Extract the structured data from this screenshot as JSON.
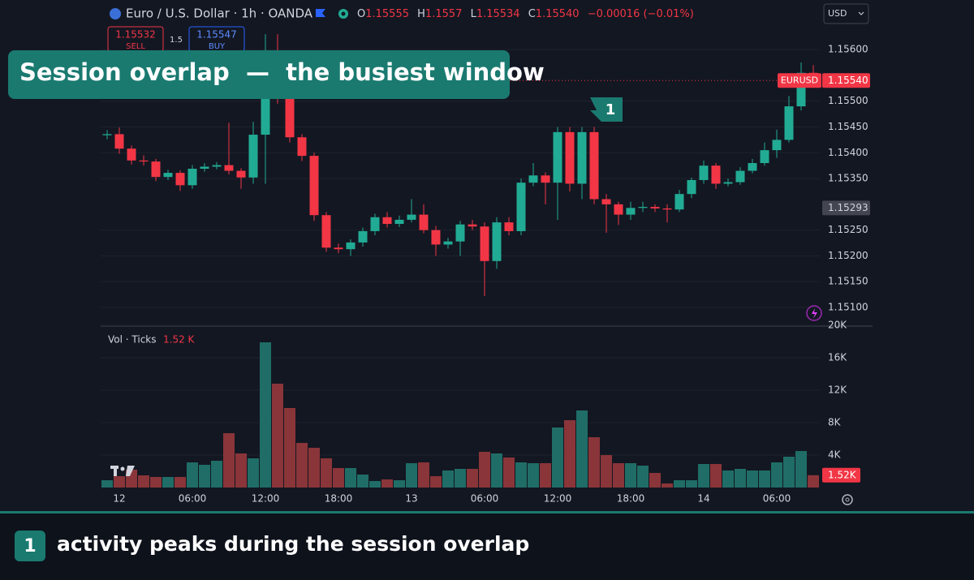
{
  "header": {
    "symbol": "Euro / U.S. Dollar · 1h · OANDA",
    "o": "O",
    "h": "H",
    "l": "L",
    "c": "C",
    "change": "−0.00016 (−0.01%)",
    "sell_price": "1.15532",
    "sell": "SELL",
    "spread": "1.5",
    "buy_price": "1.15547",
    "buy": "BUY",
    "currency": "USD",
    "ticker": "EURUSD",
    "last_price_label": "1.15540",
    "reference_price": 1.15293
  },
  "banner": "Session overlap  —  the busiest window",
  "marker": "1",
  "footer": {
    "number": "1",
    "text": "activity peaks during the session overlap"
  },
  "chart_data": [
    {
      "type": "candlestick",
      "up_color": "#22ab94",
      "down_color": "#f23645",
      "grid": true,
      "categories": [
        null,
        "12",
        null,
        null,
        null,
        null,
        null,
        "06:00",
        null,
        null,
        null,
        null,
        null,
        "12:00",
        null,
        null,
        null,
        null,
        null,
        "18:00",
        null,
        null,
        null,
        null,
        null,
        "13",
        null,
        null,
        null,
        null,
        null,
        "06:00",
        null,
        null,
        null,
        null,
        null,
        "12:00",
        null,
        null,
        null,
        null,
        null,
        "18:00",
        null,
        null,
        null,
        null,
        null,
        "14",
        null,
        null,
        null,
        null,
        null,
        "06:00",
        null,
        null,
        null
      ],
      "open": [
        1.15434,
        1.15436,
        1.15408,
        1.15385,
        1.15383,
        1.15353,
        1.15361,
        1.15337,
        1.15369,
        1.15373,
        1.15376,
        1.15365,
        1.15352,
        1.15435,
        1.15555,
        1.15505,
        1.1543,
        1.15394,
        1.15279,
        1.15216,
        1.15213,
        1.15226,
        1.15248,
        1.15275,
        1.15262,
        1.1527,
        1.1528,
        1.1525,
        1.15222,
        1.15228,
        1.15261,
        1.15257,
        1.1519,
        1.15265,
        1.15248,
        1.15342,
        1.15356,
        1.15342,
        1.1544,
        1.1534,
        1.1544,
        1.1531,
        1.153,
        1.1528,
        1.15293,
        1.15295,
        1.15292,
        1.1529,
        1.1532,
        1.15347,
        1.15375,
        1.1534,
        1.15343,
        1.15365,
        1.1538,
        1.15405,
        1.15425,
        1.1549,
        1.15555
      ],
      "high": [
        1.15444,
        1.15449,
        1.15414,
        1.15395,
        1.15388,
        1.15367,
        1.15366,
        1.15376,
        1.1538,
        1.15382,
        1.15458,
        1.1537,
        1.1546,
        1.1563,
        1.1563,
        1.15515,
        1.15436,
        1.154,
        1.15285,
        1.15224,
        1.15232,
        1.15255,
        1.15282,
        1.15285,
        1.15278,
        1.1531,
        1.153,
        1.15258,
        1.15235,
        1.15268,
        1.1527,
        1.15265,
        1.15275,
        1.15275,
        1.1535,
        1.1538,
        1.15362,
        1.1545,
        1.1545,
        1.1545,
        1.1545,
        1.1532,
        1.15305,
        1.15305,
        1.15305,
        1.153,
        1.153,
        1.15328,
        1.15352,
        1.15385,
        1.1538,
        1.1535,
        1.15372,
        1.15388,
        1.1542,
        1.15445,
        1.1551,
        1.15575,
        1.1557
      ],
      "low": [
        1.15426,
        1.15398,
        1.15377,
        1.15375,
        1.15345,
        1.15347,
        1.15326,
        1.1533,
        1.15363,
        1.15368,
        1.15358,
        1.1533,
        1.1534,
        1.1534,
        1.15495,
        1.1542,
        1.15384,
        1.15268,
        1.15208,
        1.15205,
        1.152,
        1.15218,
        1.1524,
        1.15255,
        1.15256,
        1.15265,
        1.15244,
        1.152,
        1.15214,
        1.152,
        1.1525,
        1.15122,
        1.15175,
        1.1524,
        1.1524,
        1.15335,
        1.153,
        1.1527,
        1.15325,
        1.1531,
        1.153,
        1.15245,
        1.1526,
        1.1527,
        1.15285,
        1.15285,
        1.15265,
        1.15285,
        1.15312,
        1.1534,
        1.1533,
        1.15335,
        1.15338,
        1.1536,
        1.15375,
        1.1539,
        1.1542,
        1.15482,
        1.15534
      ],
      "close": [
        1.15436,
        1.15408,
        1.15385,
        1.15383,
        1.15353,
        1.15361,
        1.15337,
        1.15369,
        1.15373,
        1.15376,
        1.15365,
        1.15352,
        1.15435,
        1.15555,
        1.15505,
        1.1543,
        1.15394,
        1.15279,
        1.15216,
        1.15213,
        1.15226,
        1.15248,
        1.15275,
        1.15262,
        1.1527,
        1.1528,
        1.1525,
        1.15222,
        1.15228,
        1.15261,
        1.15257,
        1.1519,
        1.15265,
        1.15248,
        1.15342,
        1.15356,
        1.15342,
        1.1544,
        1.1534,
        1.1544,
        1.1531,
        1.153,
        1.1528,
        1.15293,
        1.15295,
        1.15292,
        1.1529,
        1.1532,
        1.15347,
        1.15375,
        1.1534,
        1.15343,
        1.15365,
        1.1538,
        1.15405,
        1.15425,
        1.1549,
        1.15555,
        1.1554
      ],
      "ylim": [
        1.15067,
        1.15649
      ],
      "yticks": [
        {
          "value": 1.156,
          "label": "1.15600"
        },
        {
          "value": 1.155,
          "label": "1.15500"
        },
        {
          "value": 1.1545,
          "label": "1.15450"
        },
        {
          "value": 1.154,
          "label": "1.15400"
        },
        {
          "value": 1.1535,
          "label": "1.15350"
        },
        {
          "value": 1.1525,
          "label": "1.15250"
        },
        {
          "value": 1.152,
          "label": "1.15200"
        },
        {
          "value": 1.1515,
          "label": "1.15150"
        },
        {
          "value": 1.151,
          "label": "1.15100"
        }
      ]
    },
    {
      "type": "bar",
      "name": "Vol · Ticks",
      "up_color": "#1f6d66",
      "down_color": "#8a3539",
      "grid": true,
      "values": [
        0.9,
        1.4,
        2.2,
        1.5,
        1.3,
        1.3,
        1.3,
        3.1,
        2.8,
        3.3,
        6.7,
        4.2,
        3.6,
        17.9,
        12.8,
        9.8,
        5.5,
        4.9,
        3.6,
        2.4,
        2.4,
        1.6,
        0.8,
        1.0,
        0.9,
        3.0,
        3.1,
        1.4,
        2.1,
        2.3,
        2.3,
        4.4,
        4.2,
        3.7,
        3.1,
        3.0,
        3.0,
        7.4,
        8.3,
        9.5,
        6.2,
        4.0,
        3.0,
        3.0,
        2.7,
        1.8,
        0.5,
        0.9,
        0.9,
        2.9,
        2.9,
        2.1,
        2.3,
        2.1,
        2.1,
        3.1,
        3.8,
        4.5,
        1.52
      ],
      "last_label": "1.52 K",
      "last_badge": "1.52K",
      "ylim": [
        0,
        20
      ],
      "yticks": [
        {
          "value": 4,
          "label": "4K"
        },
        {
          "value": 8,
          "label": "8K"
        },
        {
          "value": 12,
          "label": "12K"
        },
        {
          "value": 16,
          "label": "16K"
        },
        {
          "value": 20,
          "label": "20K"
        }
      ]
    }
  ]
}
